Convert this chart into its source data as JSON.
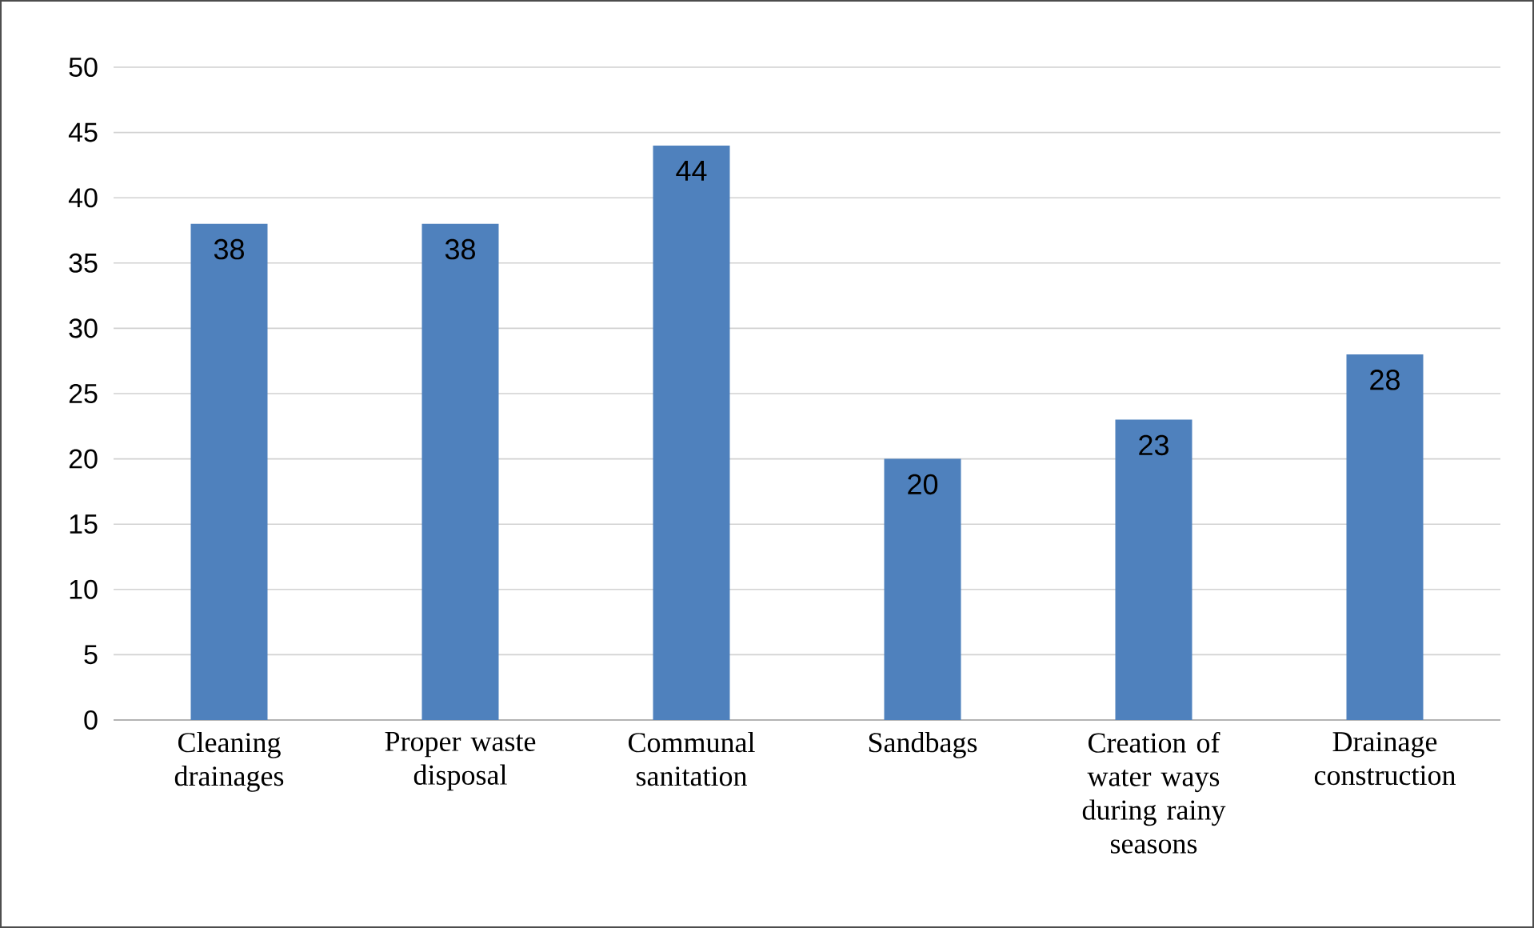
{
  "chart_data": {
    "type": "bar",
    "categories": [
      "Cleaning drainages",
      "Proper waste disposal",
      "Communal sanitation",
      "Sandbags",
      "Creation of water ways during rainy seasons",
      "Drainage construction"
    ],
    "values": [
      38,
      38,
      44,
      20,
      23,
      28
    ],
    "color": "#4f81bd",
    "ylim": [
      0,
      50
    ],
    "yticks": [
      0,
      5,
      10,
      15,
      20,
      25,
      30,
      35,
      40,
      45,
      50
    ],
    "grid": "y",
    "data_labels": true
  }
}
